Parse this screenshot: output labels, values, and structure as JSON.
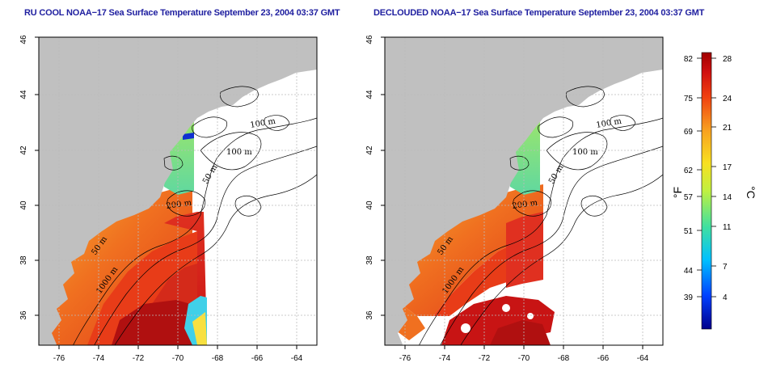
{
  "titles": {
    "left": "RU COOL NOAA−17 Sea Surface Temperature September 23, 2004 03:37 GMT",
    "right": "DECLOUDED NOAA−17 Sea Surface Temperature September 23, 2004 03:37 GMT"
  },
  "axes": {
    "x_labels": [
      "-76",
      "-74",
      "-72",
      "-70",
      "-68",
      "-66",
      "-64"
    ],
    "y_labels": [
      "36",
      "38",
      "40",
      "42",
      "44",
      "46"
    ]
  },
  "contours": {
    "labels_left": [
      "100 m",
      "100 m",
      "50 m",
      "200 m",
      "50 m",
      "1000 m"
    ],
    "labels_right": [
      "100 m",
      "100 m",
      "50 m",
      "200 m",
      "50 m",
      "1000 m"
    ]
  },
  "colorbar": {
    "fahrenheit": [
      "82",
      "75",
      "69",
      "62",
      "57",
      "51",
      "44",
      "39"
    ],
    "celsius": [
      "28",
      "24",
      "21",
      "17",
      "14",
      "11",
      "7",
      "4"
    ],
    "unit_f": "°F",
    "unit_c": "°C",
    "colors": [
      "#00008b",
      "#0040ff",
      "#00c0ff",
      "#40e0a0",
      "#c0f040",
      "#f8e020",
      "#f8a020",
      "#f04010",
      "#d01010",
      "#a00000"
    ]
  },
  "colors": {
    "land": "#c0c0c0",
    "grid": "#bbbbbb",
    "title": "#2020a0"
  }
}
